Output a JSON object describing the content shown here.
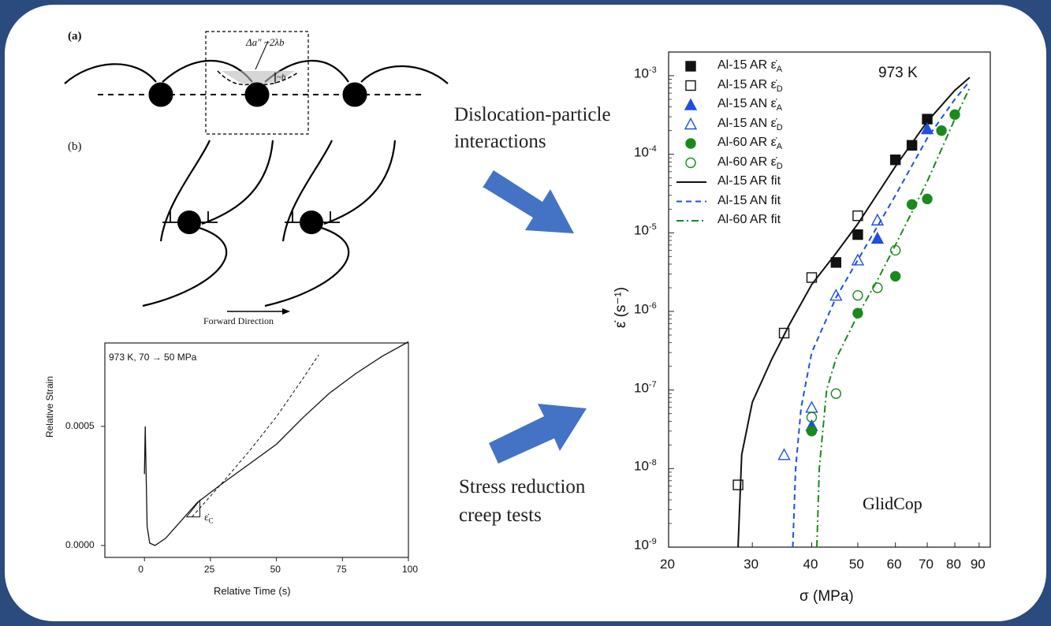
{
  "panel_a": {
    "label": "(a)",
    "annot_top": "Δa″ ~2λb",
    "annot_small": "~b"
  },
  "panel_b": {
    "label": "(b)",
    "arrow_label": "Forward Direction"
  },
  "arrow_labels": {
    "top_line1": "Dislocation-particle",
    "top_line2": "interactions",
    "bottom_line1": "Stress reduction",
    "bottom_line2": "creep tests"
  },
  "colors": {
    "border": "#2b4a7d",
    "arrow": "#4472c4",
    "blue": "#1f4fe0",
    "green": "#1b8a1b"
  },
  "creep_chart": {
    "annotation": "973 K, 70 → 50 MPa",
    "rate_label": "ε̇",
    "rate_sub": "C",
    "xlabel": "Relative Time (s)",
    "ylabel": "Relative Strain",
    "x_ticks": [
      "0",
      "25",
      "50",
      "75",
      "100"
    ],
    "y_ticks": [
      "0.0000",
      "0.0005"
    ]
  },
  "chart_data": [
    {
      "type": "line",
      "title": "",
      "xlabel": "Relative Time (s)",
      "ylabel": "Relative Strain",
      "xlim": [
        -15,
        100
      ],
      "ylim": [
        -5e-05,
        0.00085
      ],
      "series": [
        {
          "x": [
            0,
            0.3,
            1,
            2,
            4,
            8,
            12,
            20,
            30,
            40,
            50,
            60,
            70,
            80,
            90,
            100
          ],
          "y": [
            0.0003,
            0.0005,
            8e-05,
            1e-05,
            0.0,
            3e-05,
            8e-05,
            0.00018,
            0.00027,
            0.00035,
            0.00043,
            0.00054,
            0.00064,
            0.00072,
            0.00079,
            0.00085
          ]
        },
        {
          "x": [
            18,
            30,
            40,
            50,
            60,
            66
          ],
          "y": [
            0.00012,
            0.00027,
            0.0004,
            0.00054,
            0.0007,
            0.0008
          ]
        }
      ]
    },
    {
      "type": "scatter",
      "title": "",
      "xlabel": "σ (MPa)",
      "ylabel": "ε̇ (s⁻¹)",
      "x_scale": "log",
      "y_scale": "log",
      "xlim": [
        20,
        95
      ],
      "ylim": [
        1e-09,
        0.002
      ],
      "x_ticks": [
        20,
        30,
        40,
        50,
        60,
        70,
        80,
        90
      ],
      "y_ticks": [
        "10-9",
        "10-8",
        "10-7",
        "10-6",
        "10-5",
        "10-4",
        "10-3"
      ],
      "annotations": [
        "973 K",
        "GlidCop"
      ],
      "legend_position": "top-left",
      "series": [
        {
          "name": "Al-15 AR",
          "sub": "A",
          "marker": "filled-square",
          "color": "#111111",
          "x": [
            45,
            50,
            60,
            65,
            70
          ],
          "y": [
            4.2e-06,
            9.5e-06,
            8.5e-05,
            0.00013,
            0.00028
          ]
        },
        {
          "name": "Al-15 AR",
          "sub": "D",
          "marker": "open-square",
          "color": "#111111",
          "x": [
            28,
            35,
            40,
            50
          ],
          "y": [
            6.2e-09,
            5.3e-07,
            2.7e-06,
            1.65e-05
          ]
        },
        {
          "name": "Al-15 AN",
          "sub": "A",
          "marker": "filled-triangle",
          "color": "#1f4fe0",
          "x": [
            40,
            55,
            70
          ],
          "y": [
            3.5e-08,
            8.5e-06,
            0.00021
          ]
        },
        {
          "name": "Al-15 AN",
          "sub": "D",
          "marker": "open-triangle",
          "color": "#1f4fe0",
          "x": [
            35,
            40,
            45,
            50,
            55
          ],
          "y": [
            1.5e-08,
            6e-08,
            1.6e-06,
            4.5e-06,
            1.45e-05
          ]
        },
        {
          "name": "Al-60 AR",
          "sub": "A",
          "marker": "filled-circle",
          "color": "#1b8a1b",
          "x": [
            40,
            50,
            60,
            65,
            70,
            75,
            80
          ],
          "y": [
            3e-08,
            9.5e-07,
            2.8e-06,
            2.3e-05,
            2.7e-05,
            0.0002,
            0.00032
          ]
        },
        {
          "name": "Al-60 AR",
          "sub": "D",
          "marker": "open-circle",
          "color": "#1b8a1b",
          "x": [
            40,
            45,
            50,
            55,
            60
          ],
          "y": [
            4.5e-08,
            9e-08,
            1.6e-06,
            2e-06,
            6e-06
          ]
        },
        {
          "name": "Al-15 AR fit",
          "line": "solid",
          "color": "#111111",
          "x": [
            28,
            28.5,
            30,
            33,
            36,
            40,
            45,
            50,
            60,
            70,
            80,
            86
          ],
          "y": [
            1e-09,
            1.5e-08,
            7e-08,
            2.5e-07,
            7e-07,
            2.2e-06,
            5.5e-06,
            1.3e-05,
            7e-05,
            0.00026,
            0.00065,
            0.00095
          ]
        },
        {
          "name": "Al-15 AN fit",
          "line": "dashed",
          "color": "#1f4fe0",
          "x": [
            36.5,
            37,
            38,
            40,
            45,
            50,
            60,
            70,
            80,
            86
          ],
          "y": [
            1e-09,
            1e-08,
            6e-08,
            3e-07,
            1.5e-06,
            4.5e-06,
            3e-05,
            0.00016,
            0.0005,
            0.00085
          ]
        },
        {
          "name": "Al-60 AR fit",
          "line": "dash-dot",
          "color": "#1b8a1b",
          "x": [
            41,
            41.5,
            43,
            45,
            50,
            55,
            60,
            70,
            80,
            86
          ],
          "y": [
            1e-09,
            1e-08,
            1e-07,
            2.5e-07,
            9e-07,
            2.5e-06,
            7e-06,
            4.5e-05,
            0.00028,
            0.0007
          ]
        }
      ]
    }
  ]
}
